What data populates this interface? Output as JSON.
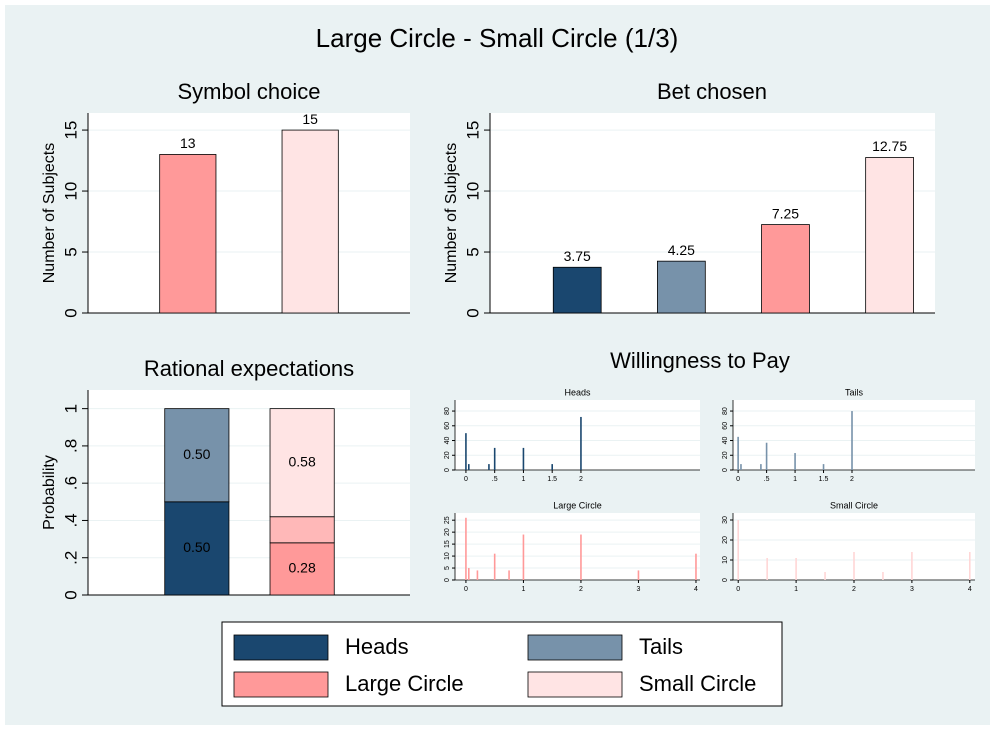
{
  "title": "Large Circle - Small Circle (1/3)",
  "chart_data": [
    {
      "type": "bar",
      "title": "Symbol choice",
      "ylabel": "Number of Subjects",
      "values": [
        13,
        15
      ],
      "colors": [
        "#ff9999",
        "#ffe4e4"
      ],
      "ylim": [
        0,
        16.4
      ],
      "yticks": [
        0,
        5,
        10,
        15
      ],
      "grid": true
    },
    {
      "type": "bar",
      "title": "Bet chosen",
      "ylabel": "Number of Subjects",
      "values": [
        3.75,
        4.25,
        7.25,
        12.75
      ],
      "colors": [
        "#1a476f",
        "#7792aa",
        "#ff9999",
        "#ffe4e4"
      ],
      "ylim": [
        0,
        16.4
      ],
      "yticks": [
        0,
        5,
        10,
        15
      ],
      "grid": true
    },
    {
      "type": "stacked_bar",
      "title": "Rational expectations",
      "ylabel": "Probability",
      "stacks": [
        {
          "values": [
            0.5,
            0.5
          ],
          "colors": [
            "#1a476f",
            "#7792aa"
          ],
          "value_labels": [
            "0.50",
            "0.50"
          ]
        },
        {
          "values": [
            0.28,
            0.14,
            0.58
          ],
          "colors": [
            "#ff9999",
            "#ffb8b8",
            "#ffe4e4"
          ],
          "value_labels": [
            "0.28",
            null,
            "0.58"
          ]
        }
      ],
      "ylim": [
        0,
        1.1
      ],
      "yticks": [
        0,
        {
          "value": 0.2,
          "label": ".2"
        },
        {
          "value": 0.4,
          "label": ".4"
        },
        {
          "value": 0.6,
          "label": ".6"
        },
        {
          "value": 0.8,
          "label": ".8"
        },
        1
      ],
      "grid": true
    },
    {
      "type": "spike_panels",
      "title": "Willingness to Pay",
      "panels": [
        {
          "title": "Heads",
          "color": "#1a476f",
          "x": [
            0,
            0.05,
            0.4,
            0.5,
            1,
            1.5,
            2
          ],
          "values": [
            50,
            8,
            8,
            30,
            30,
            8,
            72
          ],
          "xlim": [
            -0.19,
            4.07
          ],
          "xticks": [
            0,
            {
              "value": 0.5,
              "label": ".5"
            },
            1,
            1.5,
            2
          ],
          "ylim": [
            0,
            95
          ],
          "yticks": [
            0,
            20,
            40,
            60,
            80
          ]
        },
        {
          "title": "Tails",
          "color": "#7792aa",
          "x": [
            0,
            0.05,
            0.4,
            0.5,
            1,
            1.5,
            2
          ],
          "values": [
            45,
            8,
            8,
            37,
            23,
            8,
            80
          ],
          "xlim": [
            -0.09,
            4.16
          ],
          "xticks": [
            0,
            {
              "value": 0.5,
              "label": ".5"
            },
            1,
            1.5,
            2
          ],
          "ylim": [
            0,
            95
          ],
          "yticks": [
            0,
            20,
            40,
            60,
            80
          ]
        },
        {
          "title": "Large Circle",
          "color": "#ff9999",
          "x": [
            0,
            0.05,
            0.2,
            0.5,
            0.75,
            1,
            2,
            3,
            4
          ],
          "values": [
            26,
            5,
            4,
            11,
            4,
            19,
            19,
            4,
            11
          ],
          "xlim": [
            -0.19,
            4.07
          ],
          "xticks": [
            0,
            1,
            2,
            3,
            4
          ],
          "ylim": [
            0,
            28
          ],
          "yticks": [
            0,
            5,
            10,
            15,
            20,
            25
          ]
        },
        {
          "title": "Small Circle",
          "color": "#ffd6d6",
          "x": [
            0,
            0.5,
            1,
            1.5,
            2,
            2.5,
            3,
            4
          ],
          "values": [
            30,
            11,
            11,
            4,
            14,
            4,
            14,
            14
          ],
          "xlim": [
            -0.09,
            4.09
          ],
          "xticks": [
            0,
            1,
            2,
            3,
            4
          ],
          "ylim": [
            0,
            33.5
          ],
          "yticks": [
            0,
            10,
            20,
            30
          ]
        }
      ]
    }
  ],
  "legend": [
    {
      "name": "Heads",
      "color": "#1a476f"
    },
    {
      "name": "Tails",
      "color": "#7792aa"
    },
    {
      "name": "Large Circle",
      "color": "#ff9999"
    },
    {
      "name": "Small Circle",
      "color": "#ffe4e4"
    }
  ]
}
